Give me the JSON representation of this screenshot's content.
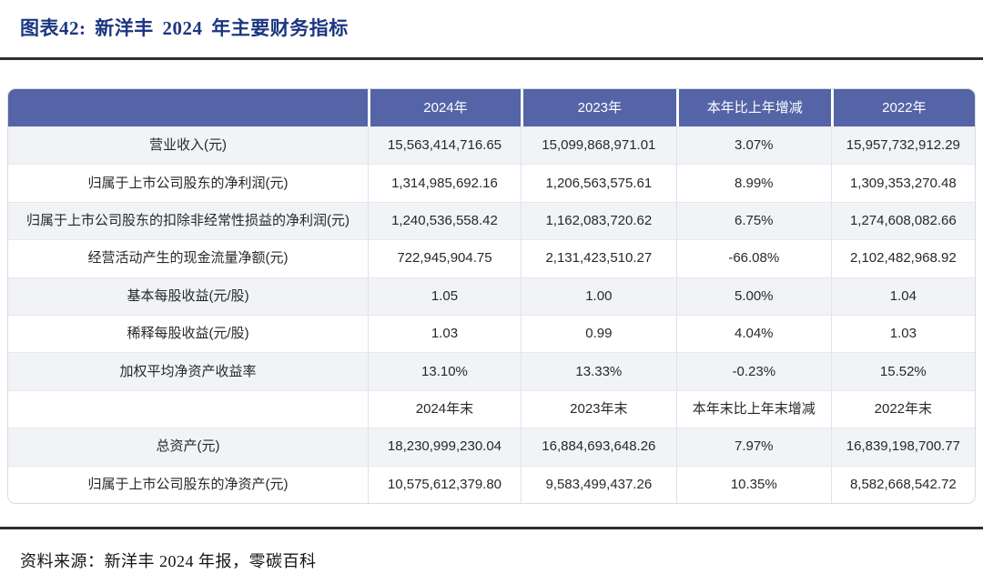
{
  "title": "图表42:  新洋丰 2024 年主要财务指标",
  "source": "资料来源：新洋丰 2024 年报，零碳百科",
  "colors": {
    "header_bg": "#5464A6",
    "title_color": "#1C3680",
    "row_alt": "#F2F3F7",
    "rule_color": "#2E2E2E"
  },
  "table": {
    "columns": [
      "",
      "2024年",
      "2023年",
      "本年比上年增减",
      "2022年"
    ],
    "rows": [
      {
        "cells": [
          "营业收入(元)",
          "15,563,414,716.65",
          "15,099,868,971.01",
          "3.07%",
          "15,957,732,912.29"
        ]
      },
      {
        "cells": [
          "归属于上市公司股东的净利润(元)",
          "1,314,985,692.16",
          "1,206,563,575.61",
          "8.99%",
          "1,309,353,270.48"
        ]
      },
      {
        "cells": [
          "归属于上市公司股东的扣除非经常性损益的净利润(元)",
          "1,240,536,558.42",
          "1,162,083,720.62",
          "6.75%",
          "1,274,608,082.66"
        ]
      },
      {
        "cells": [
          "经营活动产生的现金流量净额(元)",
          "722,945,904.75",
          "2,131,423,510.27",
          "-66.08%",
          "2,102,482,968.92"
        ]
      },
      {
        "cells": [
          "基本每股收益(元/股)",
          "1.05",
          "1.00",
          "5.00%",
          "1.04"
        ]
      },
      {
        "cells": [
          "稀释每股收益(元/股)",
          "1.03",
          "0.99",
          "4.04%",
          "1.03"
        ]
      },
      {
        "cells": [
          "加权平均净资产收益率",
          "13.10%",
          "13.33%",
          "-0.23%",
          "15.52%"
        ]
      },
      {
        "cells": [
          "",
          "2024年末",
          "2023年末",
          "本年末比上年末增减",
          "2022年末"
        ]
      },
      {
        "cells": [
          "总资产(元)",
          "18,230,999,230.04",
          "16,884,693,648.26",
          "7.97%",
          "16,839,198,700.77"
        ]
      },
      {
        "cells": [
          "归属于上市公司股东的净资产(元)",
          "10,575,612,379.80",
          "9,583,499,437.26",
          "10.35%",
          "8,582,668,542.72"
        ]
      }
    ]
  }
}
